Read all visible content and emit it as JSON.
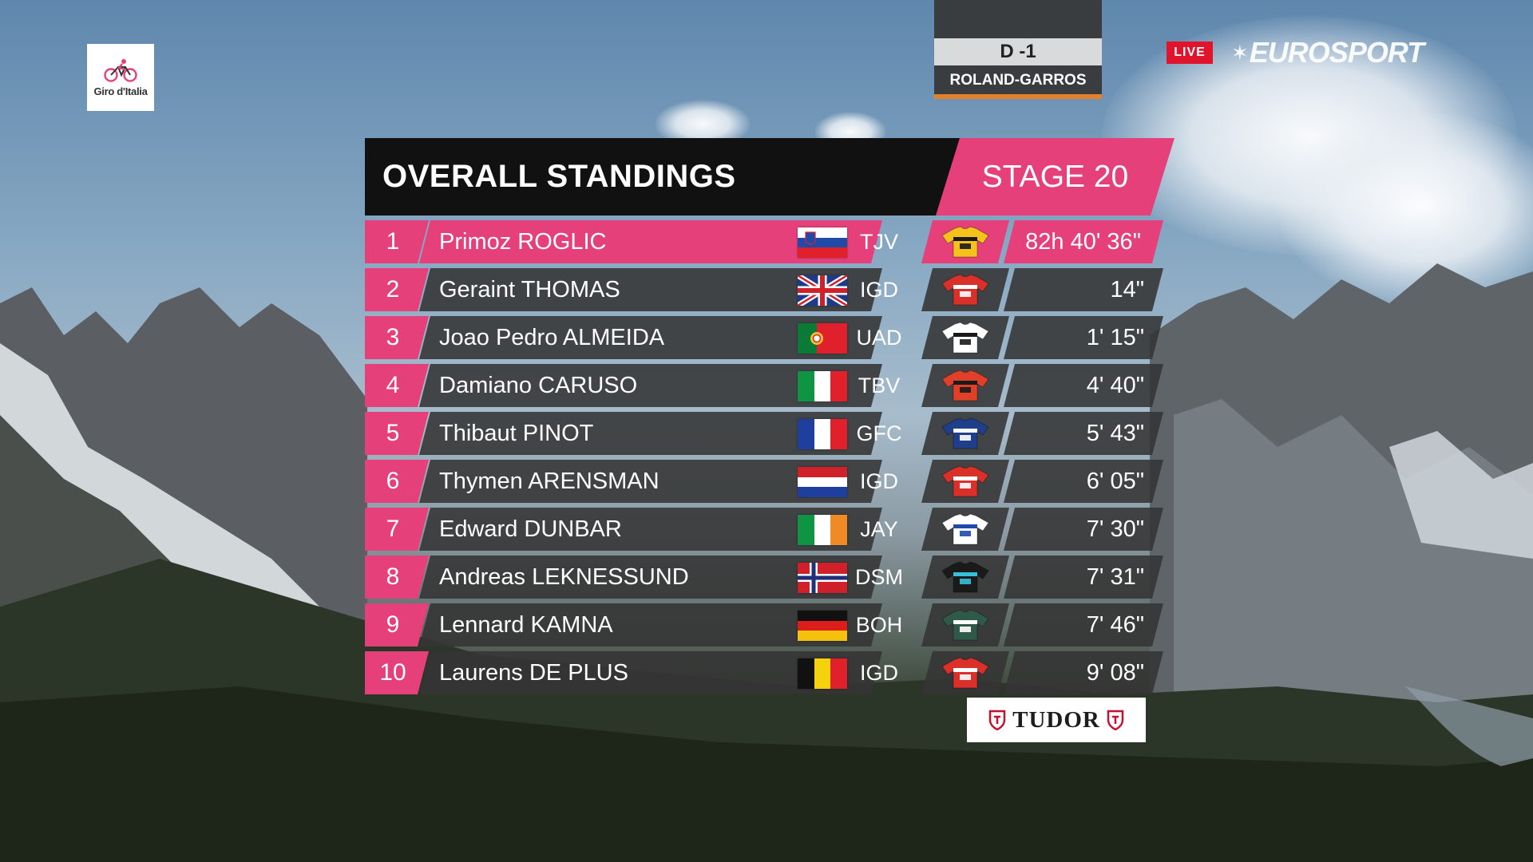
{
  "logo": {
    "text": "Giro d'Italia"
  },
  "countdown": {
    "label": "D -1",
    "event": "ROLAND-GARROS"
  },
  "broadcast": {
    "live": "LIVE",
    "channel": "EUROSPORT"
  },
  "standings": {
    "title": "OVERALL STANDINGS",
    "stage": "STAGE 20",
    "rows": [
      {
        "rank": "1",
        "name": "Primoz ROGLIC",
        "country": "slovenia",
        "team": "TJV",
        "jersey": "tjv",
        "time": "82h 40' 36\""
      },
      {
        "rank": "2",
        "name": "Geraint THOMAS",
        "country": "uk",
        "team": "IGD",
        "jersey": "igd",
        "time": "14\""
      },
      {
        "rank": "3",
        "name": "Joao Pedro ALMEIDA",
        "country": "portugal",
        "team": "UAD",
        "jersey": "uad",
        "time": "1' 15\""
      },
      {
        "rank": "4",
        "name": "Damiano CARUSO",
        "country": "italy",
        "team": "TBV",
        "jersey": "tbv",
        "time": "4' 40\""
      },
      {
        "rank": "5",
        "name": "Thibaut PINOT",
        "country": "france",
        "team": "GFC",
        "jersey": "gfc",
        "time": "5' 43\""
      },
      {
        "rank": "6",
        "name": "Thymen ARENSMAN",
        "country": "netherlands",
        "team": "IGD",
        "jersey": "igd",
        "time": "6' 05\""
      },
      {
        "rank": "7",
        "name": "Edward DUNBAR",
        "country": "ireland",
        "team": "JAY",
        "jersey": "jay",
        "time": "7' 30\""
      },
      {
        "rank": "8",
        "name": "Andreas LEKNESSUND",
        "country": "norway",
        "team": "DSM",
        "jersey": "dsm",
        "time": "7' 31\""
      },
      {
        "rank": "9",
        "name": "Lennard KAMNA",
        "country": "germany",
        "team": "BOH",
        "jersey": "boh",
        "time": "7' 46\""
      },
      {
        "rank": "10",
        "name": "Laurens DE PLUS",
        "country": "belgium",
        "team": "IGD",
        "jersey": "igd",
        "time": "9' 08\""
      }
    ]
  },
  "sponsor": {
    "name": "TUDOR"
  },
  "colors": {
    "accent": "#e6407a",
    "row_bg": "#343434",
    "header_bg": "#111111",
    "live": "#e0142a",
    "countdown_bar": "#e47f2a"
  }
}
